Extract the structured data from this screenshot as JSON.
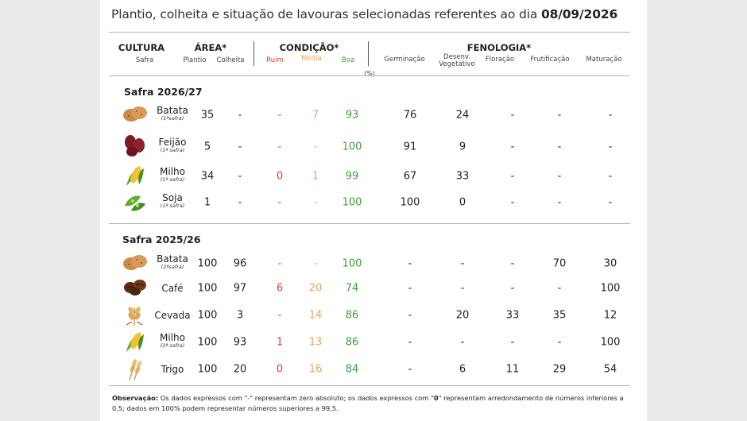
{
  "title": {
    "text": "Plantio, colheita e situação de lavouras selecionadas referentes ao dia ",
    "date": "08/09/2026"
  },
  "header": {
    "cultura": "CULTURA",
    "safra": "Safra",
    "area": "ÁREA*",
    "plantio": "Plantio",
    "colheita": "Colheita",
    "condicao": "CONDIÇÃO*",
    "ruim": "Ruim",
    "media": "Média",
    "boa": "Boa",
    "fenologia": "FENOLOGIA*",
    "germinacao": "Germinação",
    "desenv_1": "Desenv.",
    "desenv_2": "Vegetativo",
    "floracao": "Floração",
    "frutificacao": "Frutificação",
    "maturacao": "Maturação",
    "pct": "(%)"
  },
  "colors": {
    "ruim": "#d9432b",
    "media": "#f0a25a",
    "boa": "#3f9b3a"
  },
  "sections": [
    {
      "title": "Safra 2026/27",
      "rows": [
        {
          "crop": "Batata",
          "sub": "(1ªsafra)",
          "icon": "potato-icon",
          "values": [
            "35",
            "-",
            "-",
            "7",
            "93",
            "76",
            "24",
            "-",
            "-",
            "-"
          ]
        },
        {
          "crop": "Feijão",
          "sub": "(1ª safra)",
          "icon": "bean-icon",
          "values": [
            "5",
            "-",
            "-",
            "-",
            "100",
            "91",
            "9",
            "-",
            "-",
            "-"
          ]
        },
        {
          "crop": "Milho",
          "sub": "(1ª safra)",
          "icon": "corn-icon",
          "values": [
            "34",
            "-",
            "0",
            "1",
            "99",
            "67",
            "33",
            "-",
            "-",
            "-"
          ]
        },
        {
          "crop": "Soja",
          "sub": "(1ª safra)",
          "icon": "soybean-icon",
          "values": [
            "1",
            "-",
            "-",
            "-",
            "100",
            "100",
            "0",
            "-",
            "-",
            "-"
          ]
        }
      ]
    },
    {
      "title": "Safra 2025/26",
      "rows": [
        {
          "crop": "Batata",
          "sub": "(2ªsafra)",
          "icon": "potato-icon",
          "values": [
            "100",
            "96",
            "-",
            "-",
            "100",
            "-",
            "-",
            "-",
            "70",
            "30"
          ]
        },
        {
          "crop": "Café",
          "sub": "",
          "icon": "coffee-bean-icon",
          "values": [
            "100",
            "97",
            "6",
            "20",
            "74",
            "-",
            "-",
            "-",
            "-",
            "100"
          ]
        },
        {
          "crop": "Cevada",
          "sub": "",
          "icon": "barley-icon",
          "values": [
            "100",
            "3",
            "-",
            "14",
            "86",
            "-",
            "20",
            "33",
            "35",
            "12"
          ]
        },
        {
          "crop": "Milho",
          "sub": "(2ª safra)",
          "icon": "corn-icon",
          "values": [
            "100",
            "93",
            "1",
            "13",
            "86",
            "-",
            "-",
            "-",
            "-",
            "100"
          ]
        },
        {
          "crop": "Trigo",
          "sub": "",
          "icon": "wheat-icon",
          "values": [
            "100",
            "20",
            "0",
            "16",
            "84",
            "-",
            "6",
            "11",
            "29",
            "54"
          ]
        }
      ]
    }
  ],
  "note": {
    "label": "Observação:",
    "text_a": " Os dados expressos com \"-\" representam zero absoluto; os dados expressos com \"",
    "zero": "0",
    "text_b": "\" representam arredondamento de números inferiores a 0,5; dados em 100% podem representar números superiores a 99,5."
  }
}
